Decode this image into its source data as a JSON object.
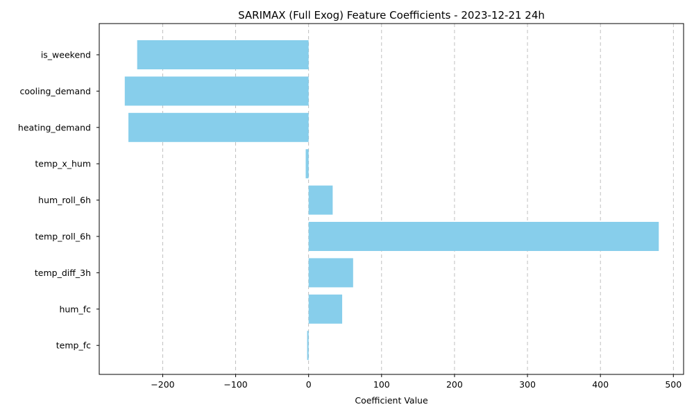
{
  "chart_data": {
    "type": "bar",
    "orientation": "horizontal",
    "title": "SARIMAX (Full Exog) Feature Coefficients - 2023-12-21 24h",
    "xlabel": "Coefficient Value",
    "ylabel": "",
    "categories": [
      "is_weekend",
      "cooling_demand",
      "heating_demand",
      "temp_x_hum",
      "hum_roll_6h",
      "temp_roll_6h",
      "temp_diff_3h",
      "hum_fc",
      "temp_fc"
    ],
    "values": [
      -235,
      -252,
      -247,
      -4,
      33,
      480,
      61,
      46,
      -2
    ],
    "xlim": [
      -287,
      514
    ],
    "xticks": [
      -200,
      -100,
      0,
      100,
      200,
      300,
      400,
      500
    ],
    "xtick_labels": [
      "−200",
      "−100",
      "0",
      "100",
      "200",
      "300",
      "400",
      "500"
    ],
    "grid": "x-axis dashed",
    "bar_color": "#87ceeb"
  }
}
